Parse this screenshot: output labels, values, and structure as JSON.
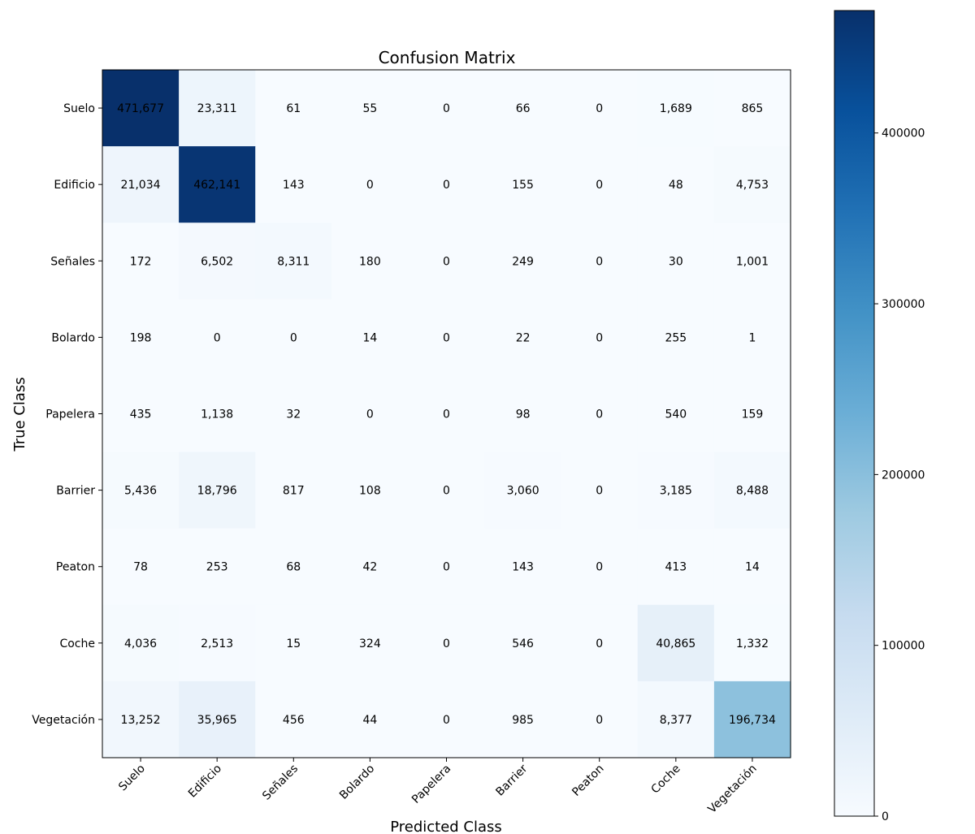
{
  "chart_data": {
    "type": "heatmap",
    "title": "Confusion Matrix",
    "xlabel": "Predicted Class",
    "ylabel": "True Class",
    "x_categories": [
      "Suelo",
      "Edificio",
      "Señales",
      "Bolardo",
      "Papelera",
      "Barrier",
      "Peaton",
      "Coche",
      "Vegetación"
    ],
    "y_categories": [
      "Suelo",
      "Edificio",
      "Señales",
      "Bolardo",
      "Papelera",
      "Barrier",
      "Peaton",
      "Coche",
      "Vegetación"
    ],
    "matrix": [
      [
        471677,
        23311,
        61,
        55,
        0,
        66,
        0,
        1689,
        865
      ],
      [
        21034,
        462141,
        143,
        0,
        0,
        155,
        0,
        48,
        4753
      ],
      [
        172,
        6502,
        8311,
        180,
        0,
        249,
        0,
        30,
        1001
      ],
      [
        198,
        0,
        0,
        14,
        0,
        22,
        0,
        255,
        1
      ],
      [
        435,
        1138,
        32,
        0,
        0,
        98,
        0,
        540,
        159
      ],
      [
        5436,
        18796,
        817,
        108,
        0,
        3060,
        0,
        3185,
        8488
      ],
      [
        78,
        253,
        68,
        42,
        0,
        143,
        0,
        413,
        14
      ],
      [
        4036,
        2513,
        15,
        324,
        0,
        546,
        0,
        40865,
        1332
      ],
      [
        13252,
        35965,
        456,
        44,
        0,
        985,
        0,
        8377,
        196734
      ]
    ],
    "colorbar": {
      "colormap": "Blues",
      "range": [
        0,
        471677
      ],
      "ticks": [
        0,
        100000,
        200000,
        300000,
        400000
      ]
    }
  }
}
